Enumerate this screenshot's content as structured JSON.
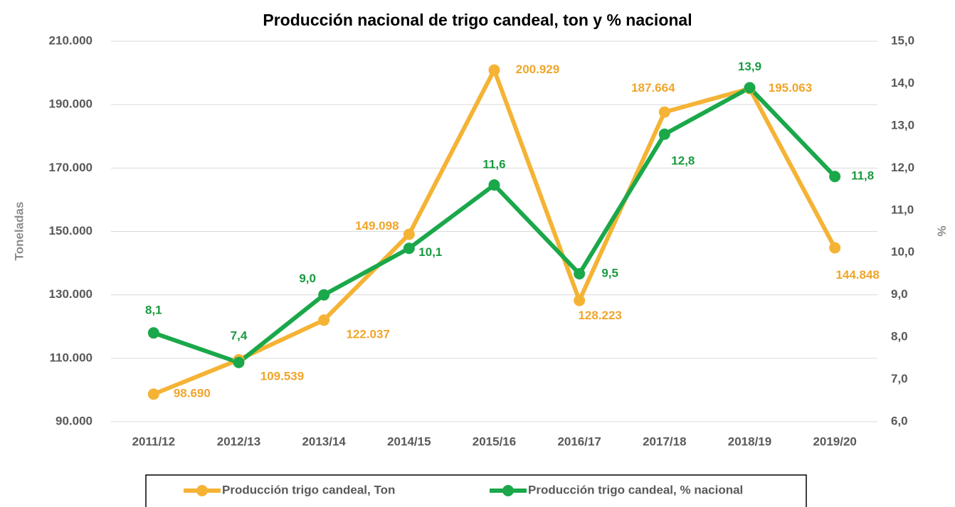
{
  "chart_data": {
    "type": "line",
    "title": "Producción nacional de trigo candeal, ton y % nacional",
    "ylabel": "Toneladas",
    "y2label": "%",
    "categories": [
      "2011/12",
      "2012/13",
      "2013/14",
      "2014/15",
      "2015/16",
      "2016/17",
      "2017/18",
      "2018/19",
      "2019/20"
    ],
    "series": [
      {
        "name": "Producción trigo candeal, Ton",
        "color": "#f5b335",
        "label_color": "#f0a52a",
        "values": [
          98690,
          109539,
          122037,
          149098,
          200929,
          128223,
          187664,
          195063,
          144848
        ],
        "value_labels": [
          "98.690",
          "109.539",
          "122.037",
          "149.098",
          "200.929",
          "128.223",
          "187.664",
          "195.063",
          "144.848"
        ]
      },
      {
        "name": "Producción trigo candeal,  % nacional",
        "color": "#1aa84a",
        "label_color": "#1a9a40",
        "axis": "y2",
        "values": [
          8.1,
          7.4,
          9.0,
          10.1,
          11.6,
          9.5,
          12.8,
          13.9,
          11.8
        ],
        "value_labels": [
          "8,1",
          "7,4",
          "9,0",
          "10,1",
          "11,6",
          "9,5",
          "12,8",
          "13,9",
          "11,8"
        ]
      }
    ],
    "ylim": [
      90000,
      210000
    ],
    "yticks": [
      {
        "value": 90000,
        "label": "90.000"
      },
      {
        "value": 110000,
        "label": "110.000"
      },
      {
        "value": 130000,
        "label": "130.000"
      },
      {
        "value": 150000,
        "label": "150.000"
      },
      {
        "value": 170000,
        "label": "170.000"
      },
      {
        "value": 190000,
        "label": "190.000"
      },
      {
        "value": 210000,
        "label": "210.000"
      }
    ],
    "y2lim": [
      6,
      15
    ],
    "y2ticks": [
      {
        "value": 6,
        "label": "6,0"
      },
      {
        "value": 7,
        "label": "7,0"
      },
      {
        "value": 8,
        "label": "8,0"
      },
      {
        "value": 9,
        "label": "9,0"
      },
      {
        "value": 10,
        "label": "10,0"
      },
      {
        "value": 11,
        "label": "11,0"
      },
      {
        "value": 12,
        "label": "12,0"
      },
      {
        "value": 13,
        "label": "13,0"
      },
      {
        "value": 14,
        "label": "14,0"
      },
      {
        "value": 15,
        "label": "15,0"
      }
    ],
    "grid": true,
    "legend": "bottom"
  }
}
